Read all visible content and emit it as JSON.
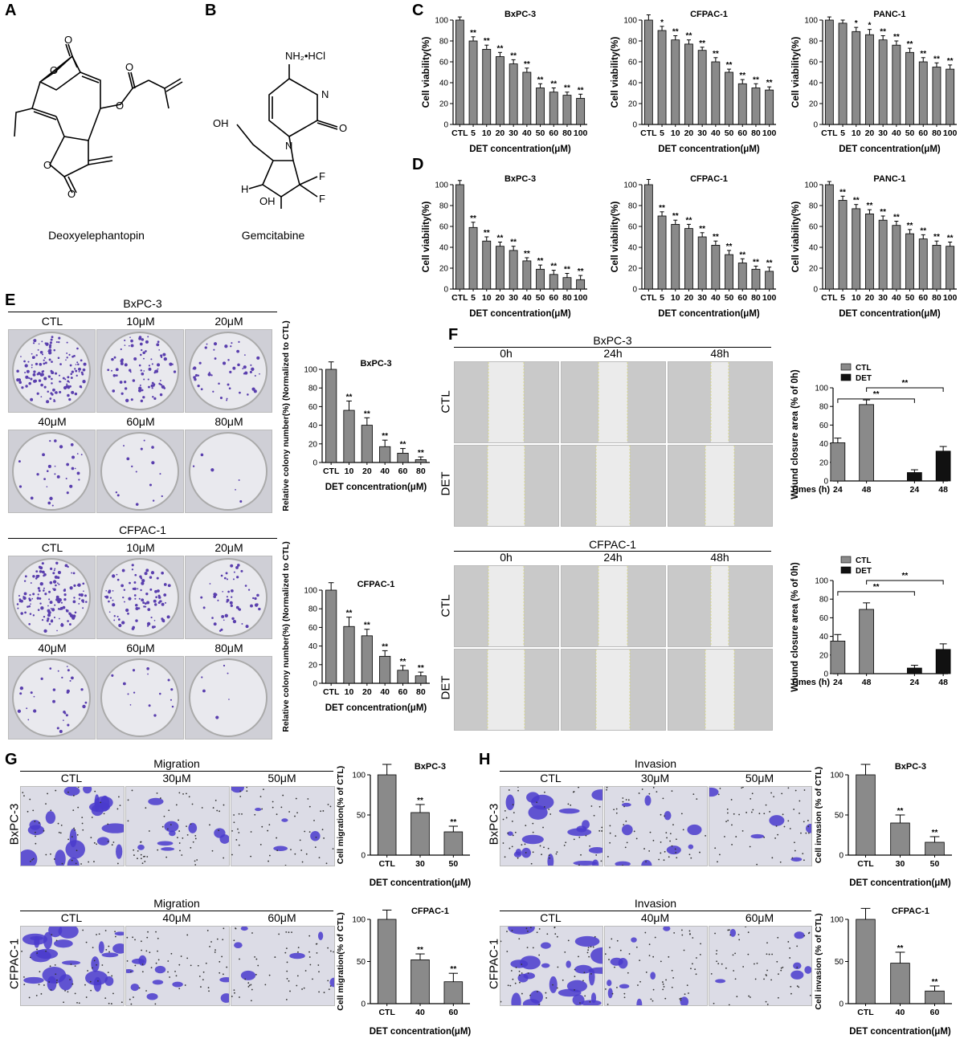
{
  "colors": {
    "gray_bar": "#8a8a8a",
    "black_bar": "#111111",
    "dish": "#e9e9ee",
    "stain": "#5a3fae",
    "scratch_bg": "#c9c9c9",
    "transwell_bg": "#dcdce6",
    "transwell_stain": "#4a3bcc"
  },
  "panels": {
    "A": "A",
    "B": "B",
    "C": "C",
    "D": "D",
    "E": "E",
    "F": "F",
    "G": "G",
    "H": "H"
  },
  "molecules": {
    "det": {
      "name": "Deoxyelephantopin"
    },
    "gem": {
      "name": "Gemcitabine",
      "nh2": "NH₂•HCl",
      "n": "N",
      "n2": "N",
      "o": "O",
      "oh1": "OH",
      "oh2": "OH",
      "h": "H",
      "f1": "F",
      "f2": "F"
    },
    "det_atoms": {
      "o1": "O",
      "o2": "O",
      "o3": "O",
      "o4": "O",
      "o5": "O",
      "o6": "O"
    }
  },
  "panel_E": {
    "bxpc3": {
      "title": "BxPC-3",
      "labels": [
        "CTL",
        "10μM",
        "20μM",
        "40μM",
        "60μM",
        "80μM"
      ]
    },
    "cfpac1": {
      "title": "CFPAC-1",
      "labels": [
        "CTL",
        "10μM",
        "20μM",
        "40μM",
        "60μM",
        "80μM"
      ]
    }
  },
  "panel_F": {
    "bxpc3": {
      "title": "BxPC-3",
      "cols": [
        "0h",
        "24h",
        "48h"
      ],
      "rows": [
        "CTL",
        "DET"
      ]
    },
    "cfpac1": {
      "title": "CFPAC-1",
      "cols": [
        "0h",
        "24h",
        "48h"
      ],
      "rows": [
        "CTL",
        "DET"
      ]
    }
  },
  "panel_G": {
    "top": {
      "title": "Migration",
      "cols": [
        "CTL",
        "30μM",
        "50μM"
      ],
      "row": "BxPC-3"
    },
    "bottom": {
      "title": "Migration",
      "cols": [
        "CTL",
        "40μM",
        "60μM"
      ],
      "row": "CFPAC-1"
    }
  },
  "panel_H": {
    "top": {
      "title": "Invasion",
      "cols": [
        "CTL",
        "30μM",
        "50μM"
      ],
      "row": "BxPC-3"
    },
    "bottom": {
      "title": "Invasion",
      "cols": [
        "CTL",
        "40μM",
        "60μM"
      ],
      "row": "CFPAC-1"
    }
  },
  "chart_data": [
    {
      "id": "C1",
      "type": "bar",
      "title": "BxPC-3",
      "ylabel": "Cell viability(%)",
      "xlabel": "DET concentration(μM)",
      "categories": [
        "CTL",
        "5",
        "10",
        "20",
        "30",
        "40",
        "50",
        "60",
        "80",
        "100"
      ],
      "values": [
        100,
        80,
        72,
        65,
        58,
        50,
        35,
        31,
        28,
        25
      ],
      "errors": [
        3,
        4,
        4,
        4,
        4,
        4,
        4,
        4,
        3,
        4
      ],
      "sig": [
        "",
        "**",
        "**",
        "**",
        "**",
        "**",
        "**",
        "**",
        "**",
        "**"
      ],
      "ylim": [
        0,
        100
      ],
      "yticks": [
        0,
        20,
        40,
        60,
        80,
        100
      ]
    },
    {
      "id": "C2",
      "type": "bar",
      "title": "CFPAC-1",
      "ylabel": "Cell viability(%)",
      "xlabel": "DET concentration(μM)",
      "categories": [
        "CTL",
        "5",
        "10",
        "20",
        "30",
        "40",
        "50",
        "60",
        "80",
        "100"
      ],
      "values": [
        100,
        90,
        81,
        77,
        71,
        60,
        50,
        39,
        35,
        33
      ],
      "errors": [
        5,
        4,
        4,
        4,
        3,
        4,
        3,
        4,
        4,
        3
      ],
      "sig": [
        "",
        "*",
        "**",
        "**",
        "**",
        "**",
        "**",
        "**",
        "**",
        "**"
      ],
      "ylim": [
        0,
        100
      ],
      "yticks": [
        0,
        20,
        40,
        60,
        80,
        100
      ]
    },
    {
      "id": "C3",
      "type": "bar",
      "title": "PANC-1",
      "ylabel": "Cell viability(%)",
      "xlabel": "DET concentration(μM)",
      "categories": [
        "CTL",
        "5",
        "10",
        "20",
        "30",
        "40",
        "50",
        "60",
        "80",
        "100"
      ],
      "values": [
        100,
        97,
        89,
        86,
        81,
        76,
        69,
        60,
        55,
        53
      ],
      "errors": [
        3,
        3,
        4,
        5,
        4,
        4,
        4,
        4,
        4,
        4
      ],
      "sig": [
        "",
        "",
        "*",
        "*",
        "**",
        "**",
        "**",
        "**",
        "**",
        "**"
      ],
      "ylim": [
        0,
        100
      ],
      "yticks": [
        0,
        20,
        40,
        60,
        80,
        100
      ]
    },
    {
      "id": "D1",
      "type": "bar",
      "title": "BxPC-3",
      "ylabel": "Cell viability(%)",
      "xlabel": "DET concentration(μM)",
      "categories": [
        "CTL",
        "5",
        "10",
        "20",
        "30",
        "40",
        "50",
        "60",
        "80",
        "100"
      ],
      "values": [
        100,
        59,
        46,
        41,
        37,
        27,
        19,
        14,
        11,
        9
      ],
      "errors": [
        4,
        5,
        4,
        4,
        4,
        3,
        4,
        4,
        4,
        4
      ],
      "sig": [
        "",
        "**",
        "**",
        "**",
        "**",
        "**",
        "**",
        "**",
        "**",
        "**"
      ],
      "ylim": [
        0,
        100
      ],
      "yticks": [
        0,
        20,
        40,
        60,
        80,
        100
      ]
    },
    {
      "id": "D2",
      "type": "bar",
      "title": "CFPAC-1",
      "ylabel": "Cell viability(%)",
      "xlabel": "DET concentration(μM)",
      "categories": [
        "CTL",
        "5",
        "10",
        "20",
        "30",
        "40",
        "50",
        "60",
        "80",
        "100"
      ],
      "values": [
        100,
        70,
        62,
        58,
        50,
        42,
        33,
        25,
        19,
        17
      ],
      "errors": [
        5,
        4,
        4,
        4,
        4,
        4,
        4,
        4,
        3,
        4
      ],
      "sig": [
        "",
        "**",
        "**",
        "**",
        "**",
        "**",
        "**",
        "**",
        "**",
        "**"
      ],
      "ylim": [
        0,
        100
      ],
      "yticks": [
        0,
        20,
        40,
        60,
        80,
        100
      ]
    },
    {
      "id": "D3",
      "type": "bar",
      "title": "PANC-1",
      "ylabel": "Cell viability(%)",
      "xlabel": "DET concentration(μM)",
      "categories": [
        "CTL",
        "5",
        "10",
        "20",
        "30",
        "40",
        "50",
        "60",
        "80",
        "100"
      ],
      "values": [
        100,
        85,
        77,
        72,
        66,
        61,
        53,
        48,
        42,
        41
      ],
      "errors": [
        3,
        4,
        4,
        4,
        4,
        4,
        4,
        4,
        4,
        4
      ],
      "sig": [
        "",
        "**",
        "**",
        "**",
        "**",
        "**",
        "**",
        "**",
        "**",
        "**"
      ],
      "ylim": [
        0,
        100
      ],
      "yticks": [
        0,
        20,
        40,
        60,
        80,
        100
      ]
    },
    {
      "id": "E1",
      "type": "bar",
      "title": "BxPC-3",
      "ylabel": "Relative colony number(%) (Normalized to CTL)",
      "xlabel": "DET concentration(μM)",
      "categories": [
        "CTL",
        "10",
        "20",
        "40",
        "60",
        "80"
      ],
      "values": [
        100,
        56,
        40,
        17,
        10,
        3
      ],
      "errors": [
        8,
        10,
        8,
        7,
        5,
        3
      ],
      "sig": [
        "",
        "**",
        "**",
        "**",
        "**",
        "**"
      ],
      "ylim": [
        0,
        100
      ],
      "yticks": [
        0,
        20,
        40,
        60,
        80,
        100
      ]
    },
    {
      "id": "E2",
      "type": "bar",
      "title": "CFPAC-1",
      "ylabel": "Relative colony number(%) (Normalized to CTL)",
      "xlabel": "DET concentration(μM)",
      "categories": [
        "CTL",
        "10",
        "20",
        "40",
        "60",
        "80"
      ],
      "values": [
        100,
        61,
        51,
        29,
        14,
        8
      ],
      "errors": [
        8,
        10,
        7,
        6,
        5,
        4
      ],
      "sig": [
        "",
        "**",
        "**",
        "**",
        "**",
        "**"
      ],
      "ylim": [
        0,
        100
      ],
      "yticks": [
        0,
        20,
        40,
        60,
        80,
        100
      ]
    },
    {
      "id": "F1",
      "type": "bar",
      "ylabel": "Wound closure area (% of 0h)",
      "xlabel": "Times (h)",
      "legend": [
        "CTL",
        "DET"
      ],
      "categories": [
        "24",
        "48",
        "24",
        "48"
      ],
      "groups": [
        "CTL",
        "CTL",
        "DET",
        "DET"
      ],
      "values": [
        41,
        82,
        9,
        32
      ],
      "errors": [
        5,
        5,
        3,
        5
      ],
      "brackets": [
        {
          "from": 0,
          "to": 2,
          "label": "**"
        },
        {
          "from": 1,
          "to": 3,
          "label": "**"
        }
      ],
      "ylim": [
        0,
        100
      ],
      "yticks": [
        0,
        20,
        40,
        60,
        80,
        100
      ]
    },
    {
      "id": "F2",
      "type": "bar",
      "ylabel": "Wound closure area (% of 0h)",
      "xlabel": "Times (h)",
      "legend": [
        "CTL",
        "DET"
      ],
      "categories": [
        "24",
        "48",
        "24",
        "48"
      ],
      "groups": [
        "CTL",
        "CTL",
        "DET",
        "DET"
      ],
      "values": [
        35,
        69,
        6,
        26
      ],
      "errors": [
        7,
        7,
        3,
        6
      ],
      "brackets": [
        {
          "from": 0,
          "to": 2,
          "label": "**"
        },
        {
          "from": 1,
          "to": 3,
          "label": "**"
        }
      ],
      "ylim": [
        0,
        100
      ],
      "yticks": [
        0,
        20,
        40,
        60,
        80,
        100
      ]
    },
    {
      "id": "G1",
      "type": "bar",
      "title": "BxPC-3",
      "ylabel": "Cell migration(% of CTL)",
      "xlabel": "DET concentration(μM)",
      "categories": [
        "CTL",
        "30",
        "50"
      ],
      "values": [
        100,
        53,
        29
      ],
      "errors": [
        13,
        10,
        7
      ],
      "sig": [
        "",
        "**",
        "**"
      ],
      "ylim": [
        0,
        100
      ],
      "yticks": [
        0,
        50,
        100
      ]
    },
    {
      "id": "G2",
      "type": "bar",
      "title": "CFPAC-1",
      "ylabel": "Cell migration(% of CTL)",
      "xlabel": "DET concentration(μM)",
      "categories": [
        "CTL",
        "40",
        "60"
      ],
      "values": [
        100,
        52,
        26
      ],
      "errors": [
        11,
        7,
        10
      ],
      "sig": [
        "",
        "**",
        "**"
      ],
      "ylim": [
        0,
        100
      ],
      "yticks": [
        0,
        50,
        100
      ]
    },
    {
      "id": "H1",
      "type": "bar",
      "title": "BxPC-3",
      "ylabel": "Cell invasion (% of CTL)",
      "xlabel": "DET concentration(μM)",
      "categories": [
        "CTL",
        "30",
        "50"
      ],
      "values": [
        100,
        40,
        16
      ],
      "errors": [
        13,
        10,
        7
      ],
      "sig": [
        "",
        "**",
        "**"
      ],
      "ylim": [
        0,
        100
      ],
      "yticks": [
        0,
        50,
        100
      ]
    },
    {
      "id": "H2",
      "type": "bar",
      "title": "CFPAC-1",
      "ylabel": "Cell invasion (% of CTL)",
      "xlabel": "DET concentration(μM)",
      "categories": [
        "CTL",
        "40",
        "60"
      ],
      "values": [
        100,
        48,
        15
      ],
      "errors": [
        13,
        13,
        6
      ],
      "sig": [
        "",
        "**",
        "**"
      ],
      "ylim": [
        0,
        100
      ],
      "yticks": [
        0,
        50,
        100
      ]
    }
  ]
}
